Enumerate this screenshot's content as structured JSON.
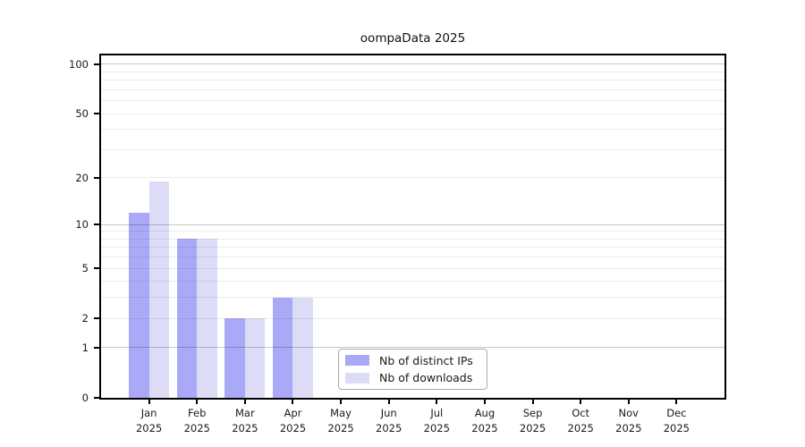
{
  "chart_data": {
    "type": "bar",
    "title": "oompaData 2025",
    "categories": [
      "Jan",
      "Feb",
      "Mar",
      "Apr",
      "May",
      "Jun",
      "Jul",
      "Aug",
      "Sep",
      "Oct",
      "Nov",
      "Dec"
    ],
    "x_label_line2": "2025",
    "series": [
      {
        "name": "Nb of distinct IPs",
        "color": "#a9a9f7",
        "values": [
          12,
          8,
          2,
          3,
          0,
          0,
          0,
          0,
          0,
          0,
          0,
          0
        ]
      },
      {
        "name": "Nb of downloads",
        "color": "#dcdcf7",
        "values": [
          19,
          8,
          2,
          3,
          0,
          0,
          0,
          0,
          0,
          0,
          0,
          0
        ]
      }
    ],
    "yscale": "log1p",
    "ylim": [
      0,
      113
    ],
    "y_axis_ticks": [
      0,
      1,
      2,
      5,
      10,
      20,
      50,
      100
    ],
    "y_major_gridlines": [
      1,
      10,
      100
    ],
    "y_minor_gridlines": [
      2,
      3,
      4,
      5,
      6,
      7,
      8,
      9,
      20,
      30,
      40,
      50,
      60,
      70,
      80,
      90
    ],
    "grid": true,
    "legend_position": "inside-bottom-center",
    "axis_color": "#000000",
    "background_color": "#ffffff"
  }
}
